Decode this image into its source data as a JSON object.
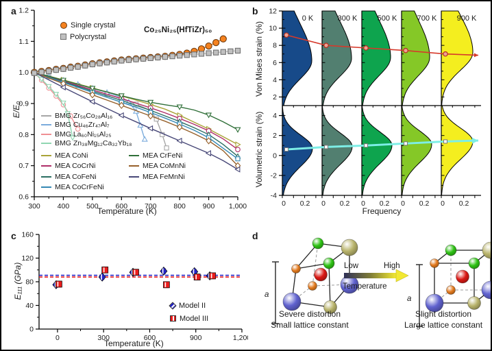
{
  "panels": {
    "a_label": "a",
    "b_label": "b",
    "c_label": "c",
    "d_label": "d"
  },
  "chart_data": [
    {
      "id": "panel_a",
      "type": "line",
      "xlabel": "Temperature (K)",
      "ylabel": "E/E₀",
      "annotation": "Co₂₅Ni₂₅(HfTiZr)₅₀",
      "xlim": [
        300,
        1000
      ],
      "ylim": [
        0.6,
        1.2
      ],
      "xticks": [
        300,
        400,
        500,
        600,
        700,
        800,
        900,
        1000
      ],
      "xtick_labels": [
        "300",
        "400",
        "500",
        "600",
        "700",
        "800",
        "900",
        "1,000"
      ],
      "yticks": [
        0.6,
        0.7,
        0.8,
        0.9,
        1.0,
        1.1,
        1.2
      ],
      "series": [
        {
          "name": "Single crystal",
          "color": "#f5821f",
          "edge": "#6b3a10",
          "marker": "circle",
          "fill": true,
          "size": 4.6,
          "marker_every": 1,
          "x": [
            300,
            325,
            350,
            375,
            400,
            425,
            450,
            475,
            500,
            525,
            550,
            575,
            600,
            625,
            650,
            675,
            700,
            725,
            750,
            775,
            800,
            825,
            850,
            875,
            900,
            925,
            950
          ],
          "y": [
            1.0,
            1.003,
            1.006,
            1.01,
            1.013,
            1.017,
            1.02,
            1.024,
            1.028,
            1.031,
            1.034,
            1.037,
            1.04,
            1.042,
            1.044,
            1.046,
            1.048,
            1.05,
            1.052,
            1.055,
            1.058,
            1.062,
            1.068,
            1.076,
            1.085,
            1.096,
            1.108
          ]
        },
        {
          "name": "Polycrystal",
          "color": "#c0c0c0",
          "edge": "#707070",
          "marker": "square",
          "fill": true,
          "size": 4.0,
          "marker_every": 1,
          "x": [
            300,
            325,
            350,
            375,
            400,
            425,
            450,
            475,
            500,
            525,
            550,
            575,
            600,
            625,
            650,
            675,
            700,
            725,
            750,
            775,
            800,
            825,
            850,
            875,
            900,
            925,
            950,
            975,
            1000
          ],
          "y": [
            0.998,
            1.001,
            1.004,
            1.008,
            1.011,
            1.015,
            1.018,
            1.022,
            1.026,
            1.029,
            1.032,
            1.035,
            1.038,
            1.04,
            1.042,
            1.044,
            1.046,
            1.048,
            1.05,
            1.052,
            1.054,
            1.056,
            1.058,
            1.06,
            1.062,
            1.064,
            1.066,
            1.068,
            1.07
          ]
        },
        {
          "name": "BMG Zr₅₆Co₂₈Al₁₆",
          "group": "bmg",
          "color": "#a6a6a6",
          "marker": "square",
          "fill": false,
          "size": 3.4,
          "marker_every": 1,
          "x": [
            300,
            350,
            400,
            450,
            500,
            550,
            600,
            650,
            700,
            720,
            740,
            755
          ],
          "y": [
            1.0,
            0.986,
            0.972,
            0.958,
            0.944,
            0.93,
            0.915,
            0.898,
            0.878,
            0.85,
            0.8,
            0.757
          ]
        },
        {
          "name": "BMG Cu₄₆Zr₄₇Al₇",
          "group": "bmg",
          "color": "#7aabdc",
          "marker": "tri-up",
          "fill": false,
          "size": 3.6,
          "marker_every": 1,
          "x": [
            300,
            350,
            400,
            450,
            500,
            550,
            600,
            625,
            650,
            665,
            680
          ],
          "y": [
            1.0,
            0.988,
            0.975,
            0.962,
            0.949,
            0.936,
            0.92,
            0.905,
            0.875,
            0.83,
            0.785
          ]
        },
        {
          "name": "BMG La₆₀Ni₁₅Al₂₅",
          "group": "bmg",
          "color": "#ef8f93",
          "marker": "circle",
          "fill": false,
          "size": 3.2,
          "marker_every": 1,
          "x": [
            300,
            325,
            350,
            375,
            400,
            425,
            450
          ],
          "y": [
            1.0,
            0.975,
            0.95,
            0.924,
            0.896,
            0.86,
            0.818
          ]
        },
        {
          "name": "BMG Zn₃₈Mg₁₂Ca₃₂Yb₁₈",
          "group": "bmg",
          "color": "#8fd6b1",
          "marker": "tri-down",
          "fill": false,
          "size": 3.4,
          "marker_every": 1,
          "x": [
            300,
            325,
            350,
            375,
            400,
            415,
            432
          ],
          "y": [
            1.0,
            0.978,
            0.955,
            0.93,
            0.902,
            0.868,
            0.79
          ]
        },
        {
          "name": "MEA CoNi",
          "group": "mea1",
          "color": "#a9a337",
          "marker": "tri-right",
          "fill": false,
          "size": 3.6,
          "marker_every": 2,
          "x": [
            300,
            350,
            400,
            450,
            500,
            550,
            600,
            650,
            700,
            750,
            800,
            850,
            900,
            950,
            1000
          ],
          "y": [
            1.0,
            0.988,
            0.976,
            0.963,
            0.95,
            0.937,
            0.924,
            0.911,
            0.897,
            0.882,
            0.862,
            0.84,
            0.818,
            0.793,
            0.768
          ]
        },
        {
          "name": "MEA CoCrNi",
          "group": "mea1",
          "color": "#ae2d68",
          "marker": "circle",
          "fill": false,
          "size": 3.3,
          "marker_every": 2,
          "x": [
            300,
            350,
            400,
            450,
            500,
            550,
            600,
            650,
            700,
            750,
            800,
            850,
            900,
            950,
            1000
          ],
          "y": [
            1.0,
            0.986,
            0.972,
            0.958,
            0.944,
            0.93,
            0.916,
            0.901,
            0.886,
            0.87,
            0.852,
            0.833,
            0.812,
            0.786,
            0.752
          ]
        },
        {
          "name": "MEA CoFeNi",
          "group": "mea1",
          "color": "#2a6e62",
          "marker": "tri-up",
          "fill": false,
          "size": 3.5,
          "marker_every": 2,
          "x": [
            300,
            350,
            400,
            450,
            500,
            550,
            600,
            650,
            700,
            750,
            800,
            850,
            900,
            950,
            1000
          ],
          "y": [
            1.0,
            0.985,
            0.97,
            0.955,
            0.94,
            0.925,
            0.91,
            0.894,
            0.878,
            0.86,
            0.842,
            0.822,
            0.8,
            0.768,
            0.73
          ]
        },
        {
          "name": "MEA CoCrFeNi",
          "group": "mea1",
          "color": "#3488b4",
          "marker": "square",
          "fill": false,
          "size": 3.3,
          "marker_every": 2,
          "x": [
            300,
            350,
            400,
            450,
            500,
            550,
            600,
            650,
            700,
            750,
            800,
            850,
            900,
            950,
            1000
          ],
          "y": [
            1.0,
            0.984,
            0.968,
            0.952,
            0.936,
            0.92,
            0.904,
            0.888,
            0.871,
            0.853,
            0.834,
            0.814,
            0.79,
            0.756,
            0.722
          ]
        },
        {
          "name": "MEA CrFeNi",
          "group": "mea2",
          "color": "#2f6f38",
          "marker": "tri-down",
          "fill": false,
          "size": 3.6,
          "marker_every": 2,
          "x": [
            300,
            350,
            400,
            450,
            500,
            550,
            600,
            650,
            700,
            750,
            800,
            850,
            900,
            950,
            1000
          ],
          "y": [
            1.0,
            0.988,
            0.975,
            0.962,
            0.949,
            0.937,
            0.925,
            0.914,
            0.904,
            0.896,
            0.889,
            0.879,
            0.863,
            0.841,
            0.816
          ]
        },
        {
          "name": "MEA CoMnNi",
          "group": "mea2",
          "color": "#96602a",
          "marker": "diamond",
          "fill": false,
          "size": 3.6,
          "marker_every": 2,
          "x": [
            300,
            350,
            400,
            450,
            500,
            550,
            600,
            650,
            700,
            750,
            800,
            850,
            900,
            950,
            1000
          ],
          "y": [
            1.0,
            0.982,
            0.964,
            0.946,
            0.928,
            0.911,
            0.894,
            0.877,
            0.86,
            0.843,
            0.824,
            0.803,
            0.78,
            0.748,
            0.7
          ]
        },
        {
          "name": "MEA FeMnNi",
          "group": "mea2",
          "color": "#474777",
          "marker": "tri-left",
          "fill": false,
          "size": 3.6,
          "marker_every": 2,
          "x": [
            300,
            350,
            400,
            450,
            500,
            550,
            600,
            650,
            700,
            750,
            800,
            850,
            900,
            950,
            1000
          ],
          "y": [
            1.0,
            0.976,
            0.952,
            0.929,
            0.906,
            0.884,
            0.862,
            0.841,
            0.82,
            0.8,
            0.78,
            0.76,
            0.74,
            0.716,
            0.688
          ]
        }
      ]
    },
    {
      "id": "panel_b",
      "type": "violin",
      "xlabel": "Frequency",
      "temps": [
        "0 K",
        "300 K",
        "500 K",
        "700 K",
        "900 K"
      ],
      "colors": [
        "#174a89",
        "#527f70",
        "#0ea44e",
        "#85c827",
        "#f4ee1f"
      ],
      "xtick_labels": [
        "0",
        "0.2"
      ],
      "rows": [
        {
          "ylabel": "Von Mises strain (%)",
          "ylim": [
            1,
            12
          ],
          "yticks": [
            2,
            4,
            6,
            8,
            10,
            12
          ],
          "means": [
            9.2,
            8.0,
            7.7,
            7.4,
            7.0
          ],
          "peaks": [
            6.2,
            6.5,
            6.6,
            6.6,
            7.2
          ],
          "line_color": "#d6392b",
          "marker_fill": "#efa193"
        },
        {
          "ylabel": "Volumetric strain (%)",
          "ylim": [
            -4,
            5
          ],
          "yticks": [
            -4,
            -2,
            0,
            2,
            4
          ],
          "means": [
            0.6,
            0.85,
            1.0,
            1.2,
            1.4
          ],
          "peaks": [
            0.7,
            0.9,
            1.0,
            1.1,
            1.4
          ],
          "line_color": "#7deee6",
          "marker_fill": "#ffffff"
        }
      ]
    },
    {
      "id": "panel_c",
      "type": "scatter",
      "xlabel": "Temperature (K)",
      "ylabel": "E₁₁₁ (GPa)",
      "xlim": [
        -120,
        1200
      ],
      "ylim": [
        0,
        160
      ],
      "xticks": [
        0,
        300,
        600,
        900,
        1200
      ],
      "xtick_labels": [
        "0",
        "300",
        "600",
        "900",
        "1,200"
      ],
      "yticks": [
        0,
        40,
        80,
        120,
        160
      ],
      "series": [
        {
          "name": "Model II",
          "color": "#2424c8",
          "marker": "diamond",
          "ref_line": 91,
          "err": 4,
          "x": [
            0,
            300,
            500,
            700,
            900,
            1000
          ],
          "y": [
            75,
            88,
            96,
            98,
            97,
            90
          ]
        },
        {
          "name": "Model III",
          "color": "#ea1c1c",
          "marker": "square",
          "ref_line": 88,
          "err": 5,
          "x": [
            0,
            300,
            500,
            700,
            900,
            1000
          ],
          "y": [
            76,
            100,
            96,
            75,
            88,
            90
          ]
        }
      ]
    }
  ],
  "panel_d": {
    "arrow": {
      "low": "Low",
      "high": "High",
      "temperature": "Temperature"
    },
    "lattice_label": "a",
    "left_caption": [
      "Severe distortion",
      "Small lattice constant"
    ],
    "right_caption": [
      "Slight distortion",
      "Large lattice constant"
    ],
    "atom_colors": {
      "green": "#2ec214",
      "khaki": "#b8b36b",
      "orange": "#e2791d",
      "red": "#da1915",
      "blue": "#6062cf"
    },
    "gradient": [
      "#2f3057",
      "#7d7b37",
      "#f2e832"
    ]
  }
}
